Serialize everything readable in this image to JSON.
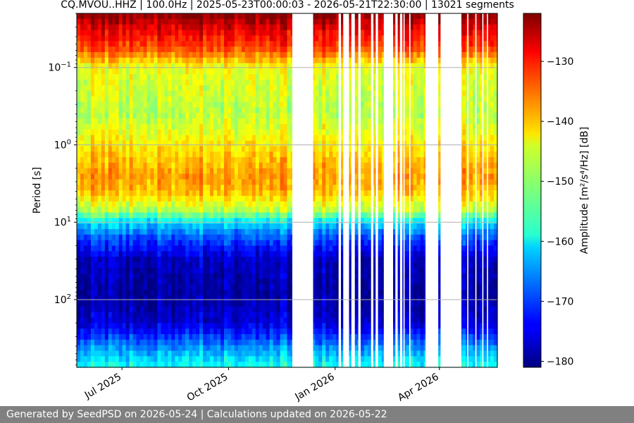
{
  "footer_text": "Generated by SeedPSD on 2026-05-24 | Calculations updated on 2026-05-22",
  "chart_data": {
    "type": "heatmap",
    "title": "CQ.MVOU..HHZ | 100.0Hz | 2025-05-23T00:00:03 - 2026-05-21T22:30:00 | 13021 segments",
    "xlabel": "",
    "ylabel": "Period [s]",
    "colorbar_label": "Amplitude [m²/s⁴/Hz] [dB]",
    "colormap": "jet",
    "x_range": [
      "2025-05-23",
      "2026-05-21"
    ],
    "x_ticks": [
      {
        "date": "2025-07-01",
        "label": "Jul 2025"
      },
      {
        "date": "2025-10-01",
        "label": "Oct 2025"
      },
      {
        "date": "2026-01-01",
        "label": "Jan 2026"
      },
      {
        "date": "2026-04-01",
        "label": "Apr 2026"
      }
    ],
    "y_scale": "log",
    "y_inverted": true,
    "y_range_s": [
      0.02,
      750
    ],
    "y_ticks": [
      {
        "value": 0.1,
        "base": "10",
        "exp": "−1"
      },
      {
        "value": 1,
        "base": "10",
        "exp": "0"
      },
      {
        "value": 10,
        "base": "10",
        "exp": "1"
      },
      {
        "value": 100,
        "base": "10",
        "exp": "2"
      }
    ],
    "grid": true,
    "c_range_db": [
      -181,
      -122
    ],
    "c_ticks": [
      -180,
      -170,
      -160,
      -150,
      -140,
      -130
    ],
    "c_tick_labels": [
      "−180",
      "−170",
      "−160",
      "−150",
      "−140",
      "−130"
    ],
    "data_gaps": [
      [
        "2025-11-25",
        "2025-12-13"
      ],
      [
        "2026-01-04",
        "2026-01-06"
      ],
      [
        "2026-01-08",
        "2026-01-13"
      ],
      [
        "2026-01-15",
        "2026-01-18"
      ],
      [
        "2026-01-21",
        "2026-01-23"
      ],
      [
        "2026-02-01",
        "2026-02-03"
      ],
      [
        "2026-02-05",
        "2026-02-07"
      ],
      [
        "2026-02-12",
        "2026-02-20"
      ],
      [
        "2026-02-22",
        "2026-02-24"
      ],
      [
        "2026-02-26",
        "2026-02-28"
      ],
      [
        "2026-03-01",
        "2026-03-02"
      ],
      [
        "2026-03-06",
        "2026-03-07"
      ],
      [
        "2026-03-20",
        "2026-03-31"
      ],
      [
        "2026-04-02",
        "2026-04-20"
      ],
      [
        "2026-04-25",
        "2026-04-26"
      ],
      [
        "2026-05-02",
        "2026-05-03"
      ],
      [
        "2026-05-08",
        "2026-05-09"
      ],
      [
        "2026-05-12",
        "2026-05-13"
      ]
    ],
    "amplitude_profile": [
      {
        "period_s": 0.02,
        "db": -122
      },
      {
        "period_s": 0.03,
        "db": -127
      },
      {
        "period_s": 0.06,
        "db": -134
      },
      {
        "period_s": 0.1,
        "db": -145
      },
      {
        "period_s": 0.4,
        "db": -148
      },
      {
        "period_s": 1,
        "db": -143
      },
      {
        "period_s": 2.5,
        "db": -138
      },
      {
        "period_s": 4,
        "db": -140
      },
      {
        "period_s": 7,
        "db": -148
      },
      {
        "period_s": 10,
        "db": -160
      },
      {
        "period_s": 15,
        "db": -168
      },
      {
        "period_s": 30,
        "db": -177
      },
      {
        "period_s": 80,
        "db": -179
      },
      {
        "period_s": 200,
        "db": -176
      },
      {
        "period_s": 300,
        "db": -170
      },
      {
        "period_s": 600,
        "db": -160
      },
      {
        "period_s": 750,
        "db": -158
      }
    ]
  }
}
